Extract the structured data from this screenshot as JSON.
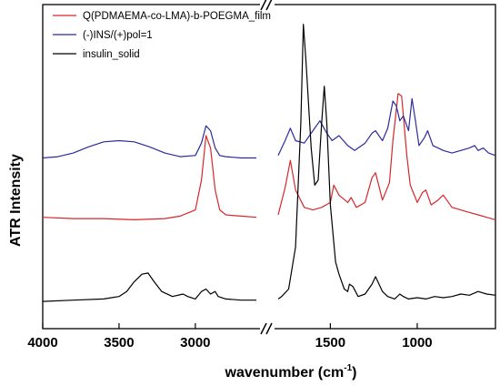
{
  "chart_data": {
    "type": "line",
    "title": "",
    "xlabel": "wavenumber (cm",
    "xlabel_sup": "-1",
    "xlabel_close": ")",
    "ylabel": "ATR Intensity",
    "x_axis_broken": true,
    "x_break_range": [
      2600,
      1800
    ],
    "x_reversed": true,
    "xlim_left": [
      4000,
      2600
    ],
    "xlim_right": [
      1800,
      550
    ],
    "x_ticks": [
      4000,
      3500,
      3000,
      1500,
      1000
    ],
    "x_tick_labels": [
      "4000",
      "3500",
      "3000",
      "1500",
      "1000"
    ],
    "y_ticks": false,
    "grid": false,
    "legend_position": "top-left",
    "series": [
      {
        "name": "Q(PDMAEMA-co-LMA)-b-POEGMA_film",
        "color": "#d62728",
        "points": [
          [
            4000,
            0.57
          ],
          [
            3800,
            0.565
          ],
          [
            3600,
            0.565
          ],
          [
            3400,
            0.56
          ],
          [
            3200,
            0.565
          ],
          [
            3100,
            0.575
          ],
          [
            3000,
            0.6
          ],
          [
            2960,
            0.72
          ],
          [
            2930,
            0.9
          ],
          [
            2900,
            0.85
          ],
          [
            2870,
            0.68
          ],
          [
            2840,
            0.6
          ],
          [
            2800,
            0.58
          ],
          [
            2700,
            0.575
          ],
          [
            2600,
            0.57
          ],
          [
            1800,
            0.58
          ],
          [
            1760,
            0.69
          ],
          [
            1730,
            0.8
          ],
          [
            1700,
            0.68
          ],
          [
            1650,
            0.61
          ],
          [
            1600,
            0.6
          ],
          [
            1550,
            0.61
          ],
          [
            1500,
            0.63
          ],
          [
            1480,
            0.7
          ],
          [
            1450,
            0.66
          ],
          [
            1400,
            0.63
          ],
          [
            1380,
            0.65
          ],
          [
            1350,
            0.61
          ],
          [
            1300,
            0.63
          ],
          [
            1260,
            0.73
          ],
          [
            1240,
            0.75
          ],
          [
            1200,
            0.64
          ],
          [
            1160,
            0.71
          ],
          [
            1140,
            0.88
          ],
          [
            1110,
            1.07
          ],
          [
            1090,
            1.06
          ],
          [
            1060,
            0.82
          ],
          [
            1040,
            0.7
          ],
          [
            1000,
            0.63
          ],
          [
            970,
            0.67
          ],
          [
            950,
            0.68
          ],
          [
            920,
            0.62
          ],
          [
            880,
            0.64
          ],
          [
            850,
            0.66
          ],
          [
            800,
            0.61
          ],
          [
            750,
            0.6
          ],
          [
            700,
            0.59
          ],
          [
            650,
            0.58
          ],
          [
            600,
            0.57
          ],
          [
            550,
            0.56
          ]
        ]
      },
      {
        "name": "(-)INS/(+)pol=1",
        "color": "#2b2b9e",
        "points": [
          [
            4000,
            0.81
          ],
          [
            3900,
            0.815
          ],
          [
            3800,
            0.83
          ],
          [
            3700,
            0.855
          ],
          [
            3600,
            0.875
          ],
          [
            3500,
            0.88
          ],
          [
            3400,
            0.875
          ],
          [
            3300,
            0.855
          ],
          [
            3200,
            0.83
          ],
          [
            3100,
            0.815
          ],
          [
            3000,
            0.82
          ],
          [
            2960,
            0.87
          ],
          [
            2930,
            0.94
          ],
          [
            2900,
            0.92
          ],
          [
            2870,
            0.85
          ],
          [
            2840,
            0.82
          ],
          [
            2800,
            0.815
          ],
          [
            2700,
            0.81
          ],
          [
            2600,
            0.81
          ],
          [
            1800,
            0.82
          ],
          [
            1760,
            0.88
          ],
          [
            1730,
            0.93
          ],
          [
            1700,
            0.88
          ],
          [
            1650,
            0.87
          ],
          [
            1600,
            0.92
          ],
          [
            1560,
            0.96
          ],
          [
            1520,
            0.91
          ],
          [
            1490,
            0.88
          ],
          [
            1450,
            0.9
          ],
          [
            1400,
            0.86
          ],
          [
            1360,
            0.84
          ],
          [
            1300,
            0.87
          ],
          [
            1260,
            0.91
          ],
          [
            1240,
            0.92
          ],
          [
            1200,
            0.88
          ],
          [
            1170,
            0.93
          ],
          [
            1140,
            1.04
          ],
          [
            1120,
            1.02
          ],
          [
            1100,
            0.96
          ],
          [
            1080,
            0.98
          ],
          [
            1050,
            0.92
          ],
          [
            1030,
            1.05
          ],
          [
            1010,
            0.96
          ],
          [
            990,
            0.86
          ],
          [
            960,
            0.89
          ],
          [
            940,
            0.92
          ],
          [
            910,
            0.86
          ],
          [
            880,
            0.85
          ],
          [
            850,
            0.84
          ],
          [
            800,
            0.83
          ],
          [
            750,
            0.84
          ],
          [
            700,
            0.85
          ],
          [
            670,
            0.86
          ],
          [
            650,
            0.84
          ],
          [
            620,
            0.85
          ],
          [
            590,
            0.83
          ],
          [
            550,
            0.82
          ]
        ]
      },
      {
        "name": "insulin_solid",
        "color": "#000000",
        "points": [
          [
            4000,
            0.23
          ],
          [
            3800,
            0.235
          ],
          [
            3600,
            0.24
          ],
          [
            3500,
            0.25
          ],
          [
            3450,
            0.27
          ],
          [
            3400,
            0.31
          ],
          [
            3350,
            0.34
          ],
          [
            3310,
            0.345
          ],
          [
            3270,
            0.31
          ],
          [
            3220,
            0.27
          ],
          [
            3150,
            0.25
          ],
          [
            3080,
            0.26
          ],
          [
            3050,
            0.25
          ],
          [
            3000,
            0.24
          ],
          [
            2960,
            0.27
          ],
          [
            2930,
            0.28
          ],
          [
            2900,
            0.26
          ],
          [
            2870,
            0.27
          ],
          [
            2850,
            0.25
          ],
          [
            2800,
            0.24
          ],
          [
            2700,
            0.235
          ],
          [
            2600,
            0.235
          ],
          [
            1800,
            0.24
          ],
          [
            1780,
            0.25
          ],
          [
            1740,
            0.28
          ],
          [
            1700,
            0.45
          ],
          [
            1670,
            0.95
          ],
          [
            1655,
            1.35
          ],
          [
            1640,
            1.2
          ],
          [
            1610,
            0.85
          ],
          [
            1590,
            0.7
          ],
          [
            1570,
            0.72
          ],
          [
            1550,
            0.95
          ],
          [
            1535,
            1.1
          ],
          [
            1520,
            0.95
          ],
          [
            1500,
            0.62
          ],
          [
            1470,
            0.39
          ],
          [
            1450,
            0.34
          ],
          [
            1420,
            0.28
          ],
          [
            1400,
            0.27
          ],
          [
            1390,
            0.3
          ],
          [
            1370,
            0.29
          ],
          [
            1340,
            0.25
          ],
          [
            1300,
            0.26
          ],
          [
            1260,
            0.3
          ],
          [
            1240,
            0.33
          ],
          [
            1220,
            0.3
          ],
          [
            1200,
            0.27
          ],
          [
            1170,
            0.25
          ],
          [
            1130,
            0.24
          ],
          [
            1100,
            0.26
          ],
          [
            1080,
            0.25
          ],
          [
            1050,
            0.24
          ],
          [
            1000,
            0.245
          ],
          [
            950,
            0.24
          ],
          [
            900,
            0.25
          ],
          [
            850,
            0.245
          ],
          [
            800,
            0.25
          ],
          [
            750,
            0.26
          ],
          [
            700,
            0.255
          ],
          [
            650,
            0.27
          ],
          [
            600,
            0.26
          ],
          [
            550,
            0.255
          ]
        ]
      }
    ]
  }
}
